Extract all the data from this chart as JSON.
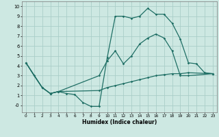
{
  "xlabel": "Humidex (Indice chaleur)",
  "background_color": "#cde8e2",
  "grid_color": "#aacec8",
  "line_color": "#1e6e64",
  "xlim": [
    -0.5,
    23.5
  ],
  "ylim": [
    -0.7,
    10.5
  ],
  "xticks": [
    0,
    1,
    2,
    3,
    4,
    5,
    6,
    7,
    8,
    9,
    10,
    11,
    12,
    13,
    14,
    15,
    16,
    17,
    18,
    19,
    20,
    21,
    22,
    23
  ],
  "yticks": [
    0,
    1,
    2,
    3,
    4,
    5,
    6,
    7,
    8,
    9,
    10
  ],
  "ytick_labels": [
    "-0",
    "1",
    "2",
    "3",
    "4",
    "5",
    "6",
    "7",
    "8",
    "9",
    "10"
  ],
  "line1_x": [
    0,
    1,
    2,
    3,
    4,
    5,
    6,
    7,
    8,
    9,
    10,
    11,
    12,
    13,
    14,
    15,
    16,
    17,
    18,
    19,
    20,
    21,
    22,
    23
  ],
  "line1_y": [
    4.3,
    3.0,
    1.8,
    1.2,
    1.4,
    1.2,
    1.1,
    0.3,
    -0.1,
    -0.1,
    4.8,
    9.0,
    9.0,
    8.8,
    9.0,
    9.8,
    9.2,
    9.2,
    8.3,
    6.7,
    4.3,
    4.2,
    3.3,
    3.2
  ],
  "line2_x": [
    0,
    2,
    3,
    4,
    9,
    10,
    11,
    12,
    13,
    14,
    15,
    16,
    17,
    18,
    19,
    20,
    23
  ],
  "line2_y": [
    4.3,
    1.8,
    1.2,
    1.4,
    3.0,
    4.5,
    5.5,
    4.2,
    5.0,
    6.2,
    6.8,
    7.2,
    6.8,
    5.5,
    3.0,
    3.0,
    3.2
  ],
  "line3_x": [
    0,
    2,
    3,
    4,
    9,
    10,
    11,
    12,
    13,
    14,
    15,
    16,
    17,
    18,
    19,
    20,
    23
  ],
  "line3_y": [
    4.3,
    1.8,
    1.2,
    1.4,
    1.5,
    1.8,
    2.0,
    2.2,
    2.4,
    2.6,
    2.8,
    3.0,
    3.1,
    3.2,
    3.2,
    3.3,
    3.2
  ]
}
